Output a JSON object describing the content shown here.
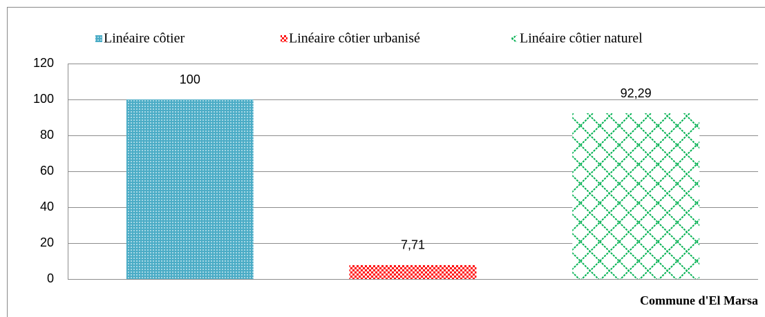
{
  "chart_data": {
    "type": "bar",
    "categories": [
      "Commune d'El Marsa"
    ],
    "series": [
      {
        "name": "Linéaire côtier",
        "color": "#4bacc6",
        "pattern": "dots",
        "values": [
          100
        ],
        "value_labels": [
          "100"
        ]
      },
      {
        "name": "Linéaire côtier urbanisé",
        "color": "#ff0000",
        "pattern": "checker",
        "values": [
          7.71
        ],
        "value_labels": [
          "7,71"
        ]
      },
      {
        "name": "Linéaire côtier naturel",
        "color": "#00b050",
        "pattern": "zigzag",
        "values": [
          92.29
        ],
        "value_labels": [
          "92,29"
        ]
      }
    ],
    "ylim": [
      0,
      120
    ],
    "yticks": [
      0,
      20,
      40,
      60,
      80,
      100,
      120
    ],
    "grid": true,
    "legend": "top"
  }
}
